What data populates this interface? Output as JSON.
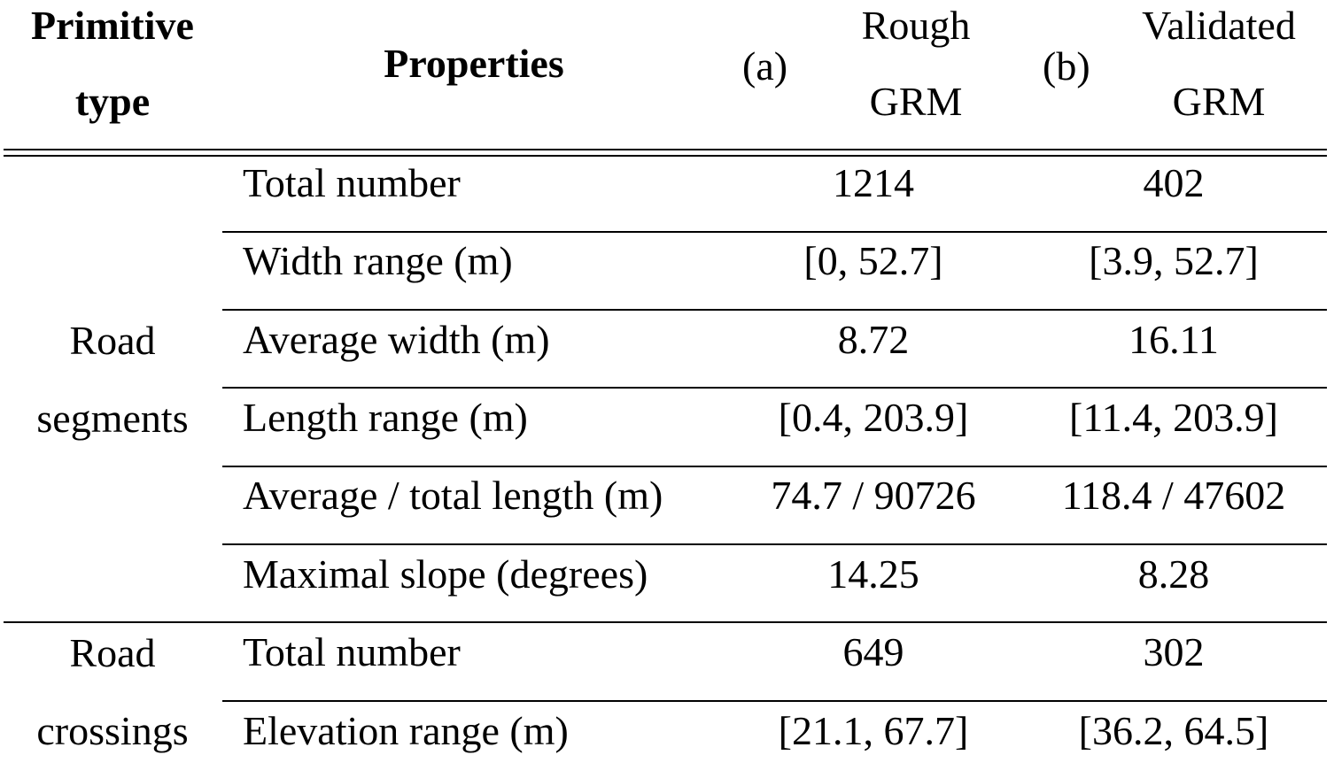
{
  "header": {
    "primitive_type": [
      "Primitive",
      "type"
    ],
    "properties": "Properties",
    "col_a_marker": "(a)",
    "col_a_label": [
      "Rough",
      "GRM"
    ],
    "col_b_marker": "(b)",
    "col_b_label": [
      "Validated",
      "GRM"
    ]
  },
  "groups": [
    {
      "type_label": [
        "Road",
        "segments"
      ],
      "rows": [
        {
          "property": "Total number",
          "rough": "1214",
          "validated": "402"
        },
        {
          "property": "Width range (m)",
          "rough": "[0, 52.7]",
          "validated": "[3.9, 52.7]"
        },
        {
          "property": "Average width (m)",
          "rough": "8.72",
          "validated": "16.11"
        },
        {
          "property": "Length range (m)",
          "rough": "[0.4, 203.9]",
          "validated": "[11.4, 203.9]"
        },
        {
          "property": "Average / total length (m)",
          "rough": "74.7 / 90726",
          "validated": "118.4 / 47602"
        },
        {
          "property": "Maximal slope (degrees)",
          "rough": "14.25",
          "validated": "8.28"
        }
      ]
    },
    {
      "type_label": [
        "Road",
        "crossings"
      ],
      "rows": [
        {
          "property": "Total number",
          "rough": "649",
          "validated": "302"
        },
        {
          "property": "Elevation range (m)",
          "rough": "[21.1, 67.7]",
          "validated": "[36.2, 64.5]"
        }
      ]
    }
  ]
}
